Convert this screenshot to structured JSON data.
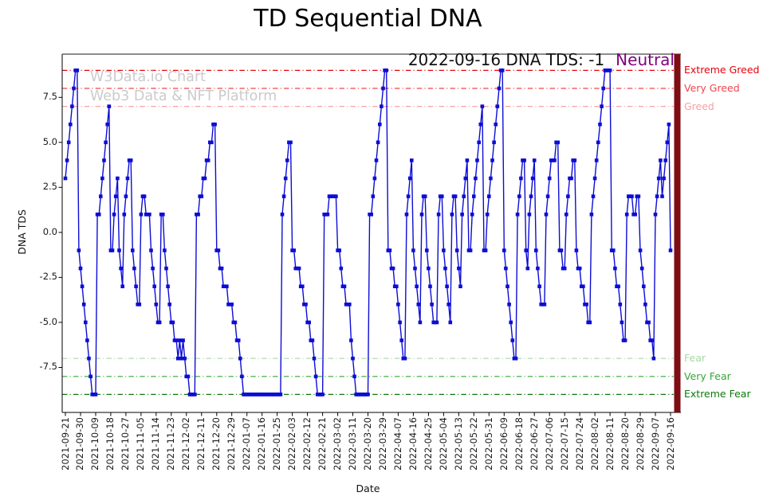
{
  "chart_data": {
    "type": "line",
    "title": "TD Sequential DNA",
    "xlabel": "Date",
    "ylabel": "DNA TDS",
    "ylim": [
      -10,
      10
    ],
    "grid": false,
    "legend": "none",
    "y_ticks": [
      -7.5,
      -5.0,
      -2.5,
      0.0,
      2.5,
      5.0,
      7.5
    ],
    "x_tick_labels": [
      "2021-09-21",
      "2021-09-30",
      "2021-10-09",
      "2021-10-18",
      "2021-10-27",
      "2021-11-05",
      "2021-11-14",
      "2021-11-23",
      "2021-12-02",
      "2021-12-11",
      "2021-12-20",
      "2021-12-29",
      "2022-01-07",
      "2022-01-16",
      "2022-01-25",
      "2022-02-03",
      "2022-02-12",
      "2022-02-21",
      "2022-03-02",
      "2022-03-11",
      "2022-03-20",
      "2022-03-29",
      "2022-04-07",
      "2022-04-16",
      "2022-04-25",
      "2022-05-04",
      "2022-05-13",
      "2022-05-22",
      "2022-05-31",
      "2022-06-09",
      "2022-06-18",
      "2022-06-27",
      "2022-07-06",
      "2022-07-15",
      "2022-07-24",
      "2022-08-02",
      "2022-08-11",
      "2022-08-20",
      "2022-08-29",
      "2022-09-07",
      "2022-09-16"
    ],
    "series": [
      {
        "name": "DNA TDS",
        "color": "#0d0dd6",
        "marker": "square",
        "values": [
          3,
          4,
          5,
          6,
          7,
          8,
          9,
          9,
          -1,
          -2,
          -3,
          -4,
          -5,
          -6,
          -7,
          -8,
          -9,
          -9,
          -9,
          1,
          1,
          2,
          3,
          4,
          5,
          6,
          7,
          -1,
          -1,
          1,
          2,
          3,
          -1,
          -2,
          -3,
          1,
          2,
          3,
          4,
          4,
          -1,
          -2,
          -3,
          -4,
          -4,
          1,
          2,
          2,
          1,
          1,
          1,
          -1,
          -2,
          -3,
          -4,
          -5,
          -5,
          1,
          1,
          -1,
          -2,
          -3,
          -4,
          -5,
          -5,
          -6,
          -6,
          -7,
          -6,
          -7,
          -6,
          -7,
          -8,
          -8,
          -9,
          -9,
          -9,
          -9,
          1,
          1,
          2,
          2,
          3,
          3,
          4,
          4,
          5,
          5,
          6,
          6,
          -1,
          -1,
          -2,
          -2,
          -3,
          -3,
          -3,
          -4,
          -4,
          -4,
          -5,
          -5,
          -6,
          -6,
          -7,
          -8,
          -9,
          -9,
          -9,
          -9,
          -9,
          -9,
          -9,
          -9,
          -9,
          -9,
          -9,
          -9,
          -9,
          -9,
          -9,
          -9,
          -9,
          -9,
          -9,
          -9,
          -9,
          -9,
          -9,
          1,
          2,
          3,
          4,
          5,
          5,
          -1,
          -1,
          -2,
          -2,
          -2,
          -3,
          -3,
          -4,
          -4,
          -5,
          -5,
          -6,
          -6,
          -7,
          -8,
          -9,
          -9,
          -9,
          -9,
          1,
          1,
          1,
          2,
          2,
          2,
          2,
          2,
          -1,
          -1,
          -2,
          -3,
          -3,
          -4,
          -4,
          -4,
          -6,
          -7,
          -8,
          -9,
          -9,
          -9,
          -9,
          -9,
          -9,
          -9,
          -9,
          1,
          1,
          2,
          3,
          4,
          5,
          6,
          7,
          8,
          9,
          9,
          -1,
          -1,
          -2,
          -2,
          -3,
          -3,
          -4,
          -5,
          -6,
          -7,
          -7,
          1,
          2,
          3,
          4,
          -1,
          -2,
          -3,
          -4,
          -5,
          1,
          2,
          2,
          -1,
          -2,
          -3,
          -4,
          -5,
          -5,
          -5,
          1,
          2,
          2,
          -1,
          -2,
          -3,
          -4,
          -5,
          1,
          2,
          2,
          -1,
          -2,
          -3,
          1,
          2,
          3,
          4,
          -1,
          -1,
          1,
          2,
          3,
          4,
          5,
          6,
          7,
          -1,
          -1,
          1,
          2,
          3,
          4,
          5,
          6,
          7,
          8,
          9,
          9,
          -1,
          -2,
          -3,
          -4,
          -5,
          -6,
          -7,
          -7,
          1,
          2,
          3,
          4,
          4,
          -1,
          -2,
          1,
          2,
          3,
          4,
          -1,
          -2,
          -3,
          -4,
          -4,
          -4,
          1,
          2,
          3,
          4,
          4,
          4,
          5,
          5,
          -1,
          -1,
          -2,
          -2,
          1,
          2,
          3,
          3,
          4,
          4,
          -1,
          -2,
          -2,
          -3,
          -3,
          -4,
          -4,
          -5,
          -5,
          1,
          2,
          3,
          4,
          5,
          6,
          7,
          8,
          9,
          9,
          9,
          9,
          -1,
          -1,
          -2,
          -3,
          -3,
          -4,
          -5,
          -6,
          -6,
          1,
          2,
          2,
          2,
          1,
          1,
          2,
          2,
          -1,
          -2,
          -3,
          -4,
          -5,
          -5,
          -6,
          -6,
          -7,
          1,
          2,
          3,
          4,
          2,
          3,
          4,
          5,
          6,
          -1
        ]
      }
    ],
    "thresholds": [
      {
        "label": "Extreme Greed",
        "value": 9,
        "color": "#e8000b"
      },
      {
        "label": "Very Greed",
        "value": 8,
        "color": "#f1434b"
      },
      {
        "label": "Greed",
        "value": 7,
        "color": "#f8a0a4"
      },
      {
        "label": "Fear",
        "value": -7,
        "color": "#a6d8a6"
      },
      {
        "label": "Very Fear",
        "value": -8,
        "color": "#37a337"
      },
      {
        "label": "Extreme Fear",
        "value": -9,
        "color": "#0b7a0b"
      }
    ],
    "current_marker": {
      "color": "#7e0d14"
    },
    "annotation": {
      "text": "2022-09-16 DNA TDS: -1",
      "status": "Neutral",
      "status_color": "#800080"
    },
    "watermark": [
      "W3Data.io Chart",
      "Web3 Data & NFT Platform"
    ],
    "last_point": {
      "date": "2022-09-16",
      "value": -1,
      "label": "Neutral"
    }
  }
}
